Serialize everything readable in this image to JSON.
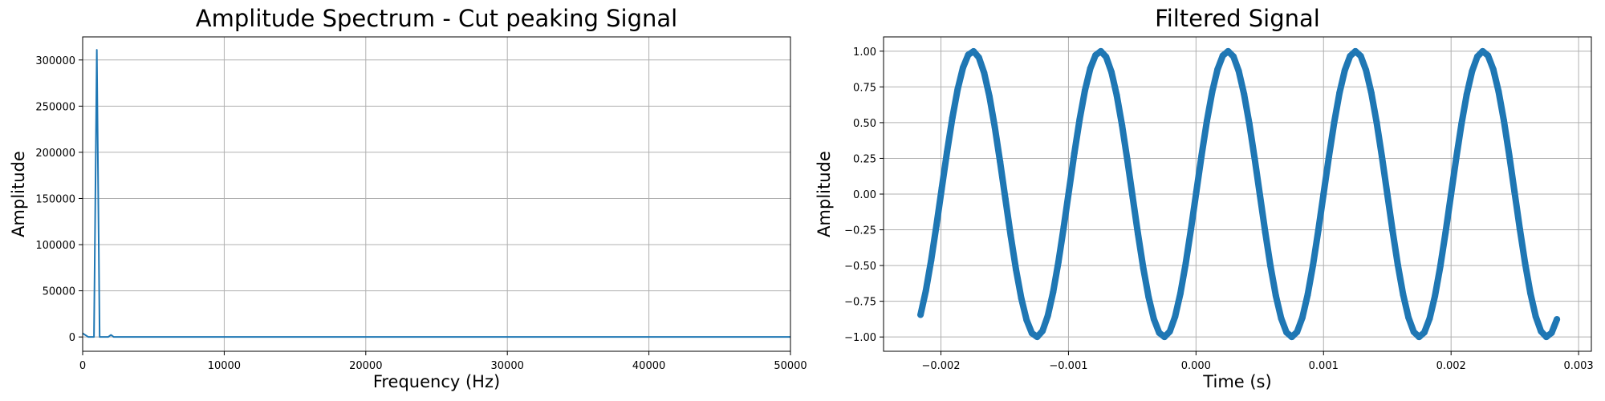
{
  "figure": {
    "background": "#ffffff",
    "line_color": "#1f77b4",
    "grid_color": "#b0b0b0"
  },
  "chart_data": [
    {
      "type": "line",
      "title": "Amplitude Spectrum - Cut peaking Signal",
      "xlabel": "Frequency (Hz)",
      "ylabel": "Amplitude",
      "xlim": [
        0,
        50000
      ],
      "ylim": [
        -15500,
        325000
      ],
      "grid": true,
      "xticks": [
        0,
        10000,
        20000,
        30000,
        40000,
        50000
      ],
      "xtick_labels": [
        "0",
        "10000",
        "20000",
        "30000",
        "40000",
        "50000"
      ],
      "yticks": [
        0,
        50000,
        100000,
        150000,
        200000,
        250000,
        300000
      ],
      "ytick_labels": [
        "0",
        "50000",
        "100000",
        "150000",
        "200000",
        "250000",
        "300000"
      ],
      "series": [
        {
          "color": "#1f77b4",
          "x": [
            0,
            400,
            600,
            800,
            1000,
            1200,
            1400,
            1600,
            1800,
            2000,
            2200,
            2400,
            3000,
            10000,
            20000,
            30000,
            40000,
            50000
          ],
          "y": [
            4000,
            0,
            0,
            0,
            311000,
            0,
            0,
            0,
            0,
            2200,
            0,
            0,
            0,
            0,
            0,
            0,
            0,
            0
          ]
        }
      ]
    },
    {
      "type": "scatter",
      "title": "Filtered Signal",
      "xlabel": "Time (s)",
      "ylabel": "Amplitude",
      "xlim": [
        -0.00245,
        0.0031
      ],
      "ylim": [
        -1.1,
        1.1
      ],
      "grid": true,
      "xticks": [
        -0.002,
        -0.001,
        0.0,
        0.001,
        0.002,
        0.003
      ],
      "xtick_labels": [
        "−0.002",
        "−0.001",
        "0.000",
        "0.001",
        "0.002",
        "0.003"
      ],
      "yticks": [
        -1.0,
        -0.75,
        -0.5,
        -0.25,
        0.0,
        0.25,
        0.5,
        0.75,
        1.0
      ],
      "ytick_labels": [
        "−1.00",
        "−0.75",
        "−0.50",
        "−0.25",
        "0.00",
        "0.25",
        "0.50",
        "0.75",
        "1.00"
      ],
      "series": [
        {
          "color": "#1f77b4",
          "signal": "sine",
          "frequency_hz": 1000,
          "amplitude": 1.0,
          "phase_rad": 0.0,
          "t_start": -0.00216,
          "t_end": 0.00283,
          "points": 121
        }
      ]
    }
  ]
}
